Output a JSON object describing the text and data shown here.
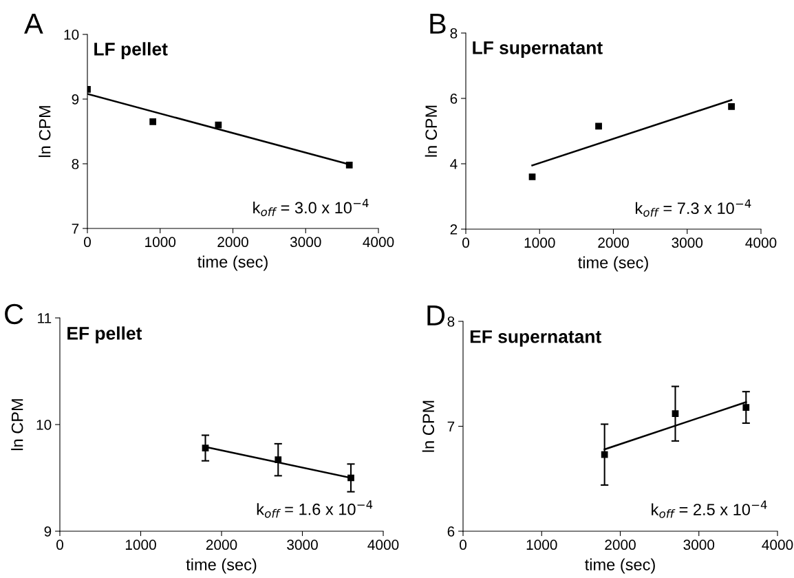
{
  "chart_data": [
    {
      "type": "scatter",
      "title": "LF pellet",
      "xlabel": "time (sec)",
      "ylabel": "ln CPM",
      "xlim": [
        0,
        4000
      ],
      "xticks": [
        0,
        1000,
        2000,
        3000,
        4000
      ],
      "ylim": [
        7,
        10
      ],
      "yticks": [
        7,
        8,
        9,
        10
      ],
      "marker": "square",
      "grid": false,
      "legend": false,
      "annotations": [
        "A",
        "k$_{off}$ = 3.0 x 10$^{−4}$"
      ],
      "series": [
        {
          "color": "#000000",
          "x": [
            0,
            900,
            1800,
            3600
          ],
          "values": [
            9.15,
            8.65,
            8.6,
            7.98
          ]
        },
        {
          "type": "line",
          "color": "#000000",
          "marker": "none",
          "x": [
            0,
            3600
          ],
          "values": [
            9.08,
            7.99
          ]
        }
      ]
    },
    {
      "type": "scatter",
      "title": "LF supernatant",
      "xlabel": "time (sec)",
      "ylabel": "ln CPM",
      "xlim": [
        0,
        4000
      ],
      "xticks": [
        0,
        1000,
        2000,
        3000,
        4000
      ],
      "ylim": [
        2,
        8
      ],
      "yticks": [
        2,
        4,
        6,
        8
      ],
      "marker": "square",
      "grid": false,
      "legend": false,
      "annotations": [
        "B",
        "k$_{off}$ = 7.3 x 10$^{−4}$"
      ],
      "series": [
        {
          "color": "#000000",
          "x": [
            900,
            1800,
            3600
          ],
          "values": [
            3.6,
            5.15,
            5.75
          ]
        },
        {
          "type": "line",
          "color": "#000000",
          "marker": "none",
          "x": [
            900,
            3600
          ],
          "values": [
            3.95,
            5.95
          ]
        }
      ]
    },
    {
      "type": "scatter",
      "title": "EF pellet",
      "xlabel": "time (sec)",
      "ylabel": "ln CPM",
      "xlim": [
        0,
        4000
      ],
      "xticks": [
        0,
        1000,
        2000,
        3000,
        4000
      ],
      "ylim": [
        9,
        11
      ],
      "yticks": [
        9,
        10,
        11
      ],
      "marker": "square",
      "grid": false,
      "legend": false,
      "annotations": [
        "C",
        "k$_{off}$ = 1.6 x 10$^{−4}$"
      ],
      "series": [
        {
          "color": "#000000",
          "x": [
            1800,
            2700,
            3600
          ],
          "values": [
            9.78,
            9.67,
            9.5
          ],
          "errors": [
            0.12,
            0.15,
            0.13
          ]
        },
        {
          "type": "line",
          "color": "#000000",
          "marker": "none",
          "x": [
            1800,
            3600
          ],
          "values": [
            9.79,
            9.5
          ]
        }
      ]
    },
    {
      "type": "scatter",
      "title": "EF supernatant",
      "xlabel": "time (sec)",
      "ylabel": "ln CPM",
      "xlim": [
        0,
        4000
      ],
      "xticks": [
        0,
        1000,
        2000,
        3000,
        4000
      ],
      "ylim": [
        6,
        8
      ],
      "yticks": [
        6,
        7,
        8
      ],
      "marker": "square",
      "grid": false,
      "legend": false,
      "annotations": [
        "D",
        "k$_{off}$ = 2.5 x 10$^{−4}$"
      ],
      "series": [
        {
          "color": "#000000",
          "x": [
            1800,
            2700,
            3600
          ],
          "values": [
            6.73,
            7.12,
            7.18
          ],
          "errors": [
            0.29,
            0.26,
            0.15
          ]
        },
        {
          "type": "line",
          "color": "#000000",
          "marker": "none",
          "x": [
            1800,
            3600
          ],
          "values": [
            6.78,
            7.23
          ]
        }
      ]
    }
  ]
}
